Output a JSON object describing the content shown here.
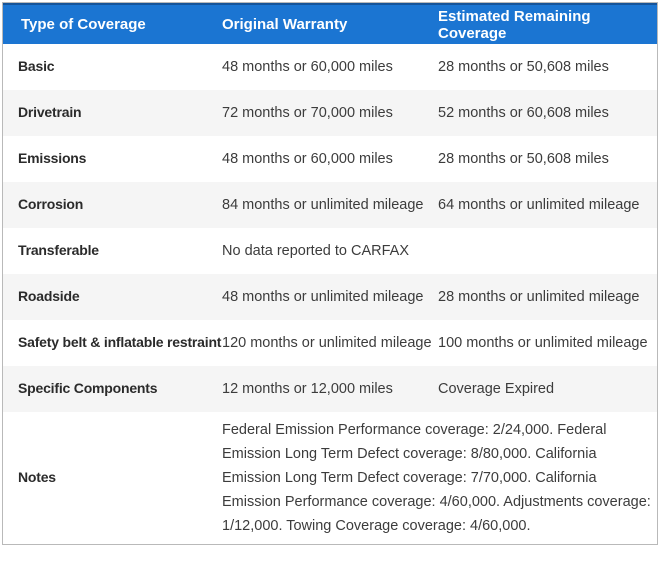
{
  "colors": {
    "header_bg": "#1b75d2",
    "header_top_border": "#15549a",
    "header_text": "#ffffff",
    "stripe": "#f5f5f5",
    "border": "#b9b9b9",
    "label_text": "#2b2b2b",
    "value_text": "#3c3c3c"
  },
  "table": {
    "headers": [
      "Type of Coverage",
      "Original Warranty",
      "Estimated Remaining Coverage"
    ],
    "rows": [
      {
        "type": "Basic",
        "original": "48 months or 60,000 miles",
        "remaining": "28 months or 50,608 miles"
      },
      {
        "type": "Drivetrain",
        "original": "72 months or 70,000 miles",
        "remaining": "52 months or 60,608 miles"
      },
      {
        "type": "Emissions",
        "original": "48 months or 60,000 miles",
        "remaining": "28 months or 50,608 miles"
      },
      {
        "type": "Corrosion",
        "original": "84 months or unlimited mileage",
        "remaining": "64 months or unlimited mileage"
      },
      {
        "type": "Transferable",
        "original": "No data reported to CARFAX",
        "remaining": ""
      },
      {
        "type": "Roadside",
        "original": "48 months or unlimited mileage",
        "remaining": "28 months or unlimited mileage"
      },
      {
        "type": "Safety belt & inflatable restraint",
        "original": "120 months or unlimited mileage",
        "remaining": "100 months or unlimited mileage"
      },
      {
        "type": "Specific Components",
        "original": "12 months or 12,000 miles",
        "remaining": "Coverage Expired"
      },
      {
        "type": "Notes",
        "original": "Federal Emission Performance coverage: 2/24,000. Federal Emission Long Term Defect coverage: 8/80,000. California Emission Long Term Defect coverage: 7/70,000. California Emission Performance coverage: 4/60,000. Adjustments coverage: 1/12,000. Towing Coverage coverage: 4/60,000.",
        "remaining": "",
        "notes_span": true
      }
    ]
  },
  "chart_data": {
    "type": "table",
    "columns": [
      "Type of Coverage",
      "Original Warranty",
      "Estimated Remaining Coverage"
    ],
    "rows": [
      [
        "Basic",
        "48 months or 60,000 miles",
        "28 months or 50,608 miles"
      ],
      [
        "Drivetrain",
        "72 months or 70,000 miles",
        "52 months or 60,608 miles"
      ],
      [
        "Emissions",
        "48 months or 60,000 miles",
        "28 months or 50,608 miles"
      ],
      [
        "Corrosion",
        "84 months or unlimited mileage",
        "64 months or unlimited mileage"
      ],
      [
        "Transferable",
        "No data reported to CARFAX",
        ""
      ],
      [
        "Roadside",
        "48 months or unlimited mileage",
        "28 months or unlimited mileage"
      ],
      [
        "Safety belt & inflatable restraint",
        "120 months or unlimited mileage",
        "100 months or unlimited mileage"
      ],
      [
        "Specific Components",
        "12 months or 12,000 miles",
        "Coverage Expired"
      ],
      [
        "Notes",
        "Federal Emission Performance coverage: 2/24,000. Federal Emission Long Term Defect coverage: 8/80,000. California Emission Long Term Defect coverage: 7/70,000. California Emission Performance coverage: 4/60,000. Adjustments coverage: 1/12,000. Towing Coverage coverage: 4/60,000.",
        ""
      ]
    ]
  }
}
